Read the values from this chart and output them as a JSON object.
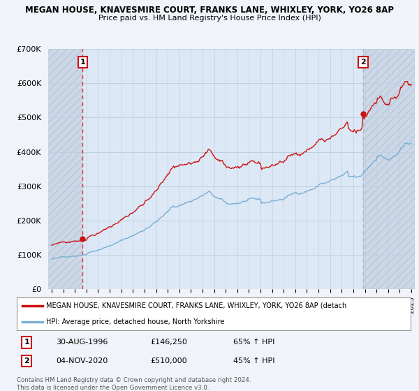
{
  "title_line1": "MEGAN HOUSE, KNAVESMIRE COURT, FRANKS LANE, WHIXLEY, YORK, YO26 8AP",
  "title_line2": "Price paid vs. HM Land Registry's House Price Index (HPI)",
  "ylim": [
    0,
    700000
  ],
  "yticks": [
    0,
    100000,
    200000,
    300000,
    400000,
    500000,
    600000,
    700000
  ],
  "ytick_labels": [
    "£0",
    "£100K",
    "£200K",
    "£300K",
    "£400K",
    "£500K",
    "£600K",
    "£700K"
  ],
  "hpi_color": "#7bafd4",
  "price_color": "#cc1111",
  "vline1_color": "#dd3333",
  "vline2_color": "#aabbcc",
  "purchase1_year": 1996.67,
  "purchase1_price": 146250,
  "purchase1_label": "1",
  "purchase2_year": 2020.84,
  "purchase2_price": 510000,
  "purchase2_label": "2",
  "legend_line1": "MEGAN HOUSE, KNAVESMIRE COURT, FRANKS LANE, WHIXLEY, YORK, YO26 8AP (detach",
  "legend_line2": "HPI: Average price, detached house, North Yorkshire",
  "table_data": [
    [
      "1",
      "30-AUG-1996",
      "£146,250",
      "65% ↑ HPI"
    ],
    [
      "2",
      "04-NOV-2020",
      "£510,000",
      "45% ↑ HPI"
    ]
  ],
  "footnote": "Contains HM Land Registry data © Crown copyright and database right 2024.\nThis data is licensed under the Open Government Licence v3.0.",
  "background_color": "#f0f4fa",
  "plot_bg_color": "#dce8f5",
  "hatch_fill_color": "#ccd8e8"
}
